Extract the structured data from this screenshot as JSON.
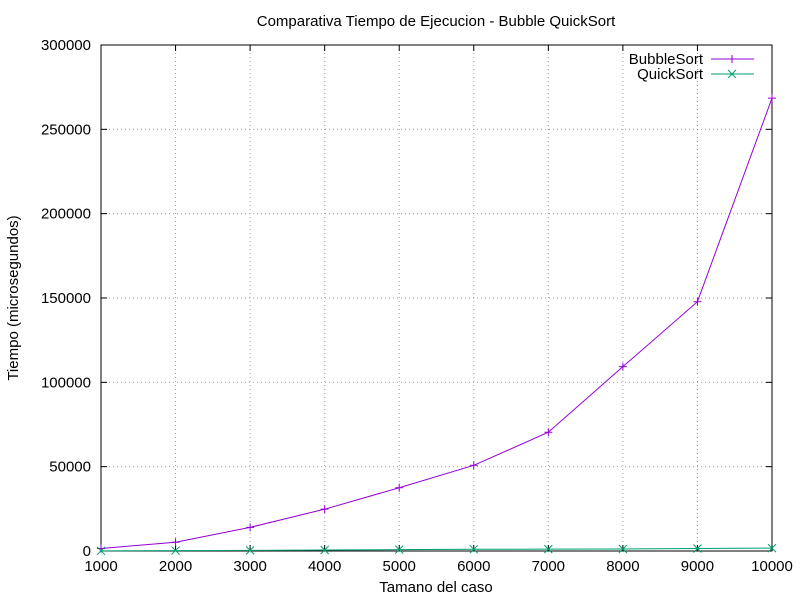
{
  "chart_data": {
    "type": "line",
    "title": "Comparativa Tiempo de Ejecucion - Bubble  QuickSort",
    "xlabel": "Tamano del caso",
    "ylabel": "Tiempo (microsegundos)",
    "x": [
      1000,
      2000,
      3000,
      4000,
      5000,
      6000,
      7000,
      8000,
      9000,
      10000
    ],
    "xlim": [
      1000,
      10000
    ],
    "ylim": [
      0,
      300000
    ],
    "xticks": [
      1000,
      2000,
      3000,
      4000,
      5000,
      6000,
      7000,
      8000,
      9000,
      10000
    ],
    "yticks": [
      0,
      50000,
      100000,
      150000,
      200000,
      250000,
      300000
    ],
    "grid": true,
    "legend_position": "top-right",
    "series": [
      {
        "name": "BubbleSort",
        "color": "#9400d3",
        "marker": "plus",
        "values": [
          1500,
          5200,
          14000,
          24800,
          37500,
          50800,
          70400,
          109300,
          147800,
          268500
        ]
      },
      {
        "name": "QuickSort",
        "color": "#009e73",
        "marker": "cross",
        "values": [
          100,
          250,
          350,
          600,
          800,
          1000,
          1100,
          1200,
          1500,
          1700
        ]
      }
    ]
  }
}
